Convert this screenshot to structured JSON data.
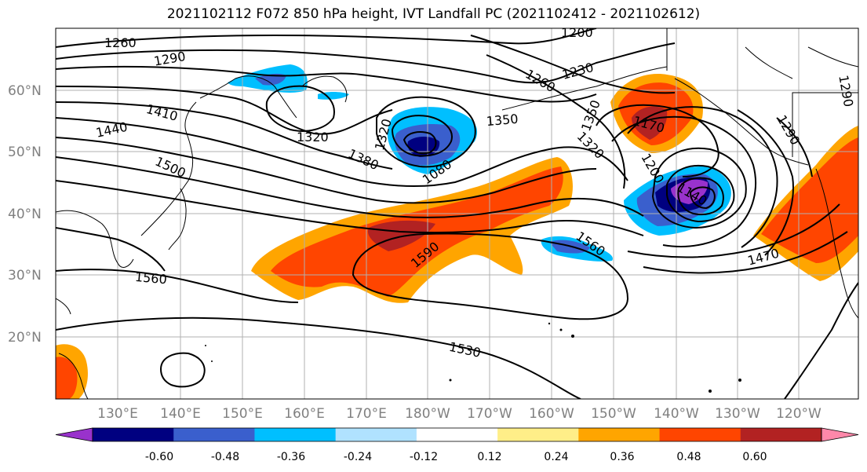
{
  "title": "2021102112 F072 850 hPa height, IVT Landfall PC (2021102412 - 2021102612)",
  "lat_labels": [
    "60°N",
    "50°N",
    "40°N",
    "30°N",
    "20°N"
  ],
  "lon_labels": [
    "130°E",
    "140°E",
    "150°E",
    "160°E",
    "170°E",
    "180°W",
    "170°W",
    "160°W",
    "150°W",
    "140°W",
    "130°W",
    "120°W"
  ],
  "contour_labels": [
    "1260",
    "1290",
    "1200",
    "1230",
    "1260",
    "1410",
    "1440",
    "1320",
    "1320",
    "1350",
    "1380",
    "1500",
    "1290",
    "1170",
    "1200",
    "1140",
    "1590",
    "1560",
    "1560",
    "1470",
    "1530",
    "1290",
    "1320",
    "1080",
    "1350"
  ],
  "colorbar": {
    "ticks": [
      "-0.60",
      "-0.48",
      "-0.36",
      "-0.24",
      "-0.12",
      "0.12",
      "0.24",
      "0.36",
      "0.48",
      "0.60"
    ],
    "colors": [
      "#9932cc",
      "#000080",
      "#3a5fcd",
      "#00bfff",
      "#b0e2ff",
      "#ffffff",
      "#ffee88",
      "#ffa500",
      "#ff4500",
      "#b22222",
      "#ff88aa"
    ]
  }
}
